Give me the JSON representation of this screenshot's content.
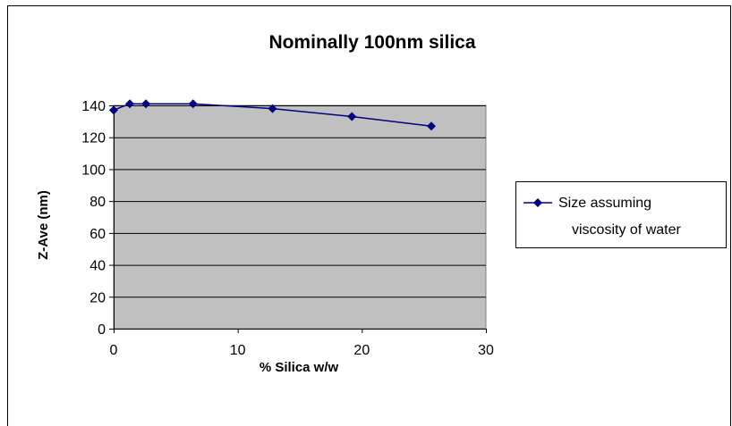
{
  "chart_data": {
    "type": "line",
    "title": "Nominally 100nm silica",
    "xlabel": "% Silica w/w",
    "ylabel": "Z-Ave (nm)",
    "xlim": [
      0,
      30
    ],
    "ylim": [
      0,
      140
    ],
    "xticks": [
      0,
      10,
      20,
      30
    ],
    "yticks": [
      0,
      20,
      40,
      60,
      80,
      100,
      120,
      140
    ],
    "grid": "horizontal",
    "legend_position": "right",
    "plot_background": "#c0c0c0",
    "series": [
      {
        "name": "Size assuming viscosity of water",
        "legend_lines": [
          "Size assuming",
          "viscosity of water"
        ],
        "color": "#000080",
        "marker": "diamond",
        "x": [
          0,
          1.3,
          2.6,
          6.4,
          12.8,
          19.2,
          25.6
        ],
        "y": [
          137,
          141,
          141,
          141,
          138,
          133,
          127
        ]
      }
    ]
  }
}
